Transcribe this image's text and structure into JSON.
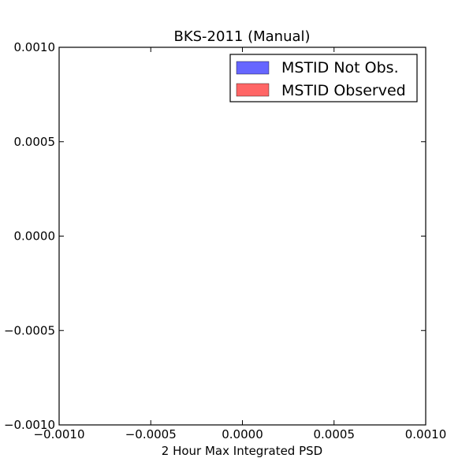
{
  "chart_data": {
    "type": "bar",
    "title": "BKS-2011 (Manual)",
    "xlabel": "2 Hour Max Integrated PSD",
    "ylabel": "",
    "xlim": [
      -0.001,
      0.001
    ],
    "ylim": [
      -0.001,
      0.001
    ],
    "xticks": [
      -0.001,
      -0.0005,
      0.0,
      0.0005,
      0.001
    ],
    "yticks": [
      -0.001,
      -0.0005,
      0.0,
      0.0005,
      0.001
    ],
    "xtick_labels": [
      "−0.0010",
      "−0.0005",
      "0.0000",
      "0.0005",
      "0.0010"
    ],
    "ytick_labels": [
      "−0.0010",
      "−0.0005",
      "0.0000",
      "0.0005",
      "0.0010"
    ],
    "grid": false,
    "legend_position": "top-right",
    "series": [
      {
        "name": "MSTID Not Obs.",
        "color": "#6666ff",
        "values": []
      },
      {
        "name": "MSTID Observed",
        "color": "#ff6666",
        "values": []
      }
    ]
  }
}
